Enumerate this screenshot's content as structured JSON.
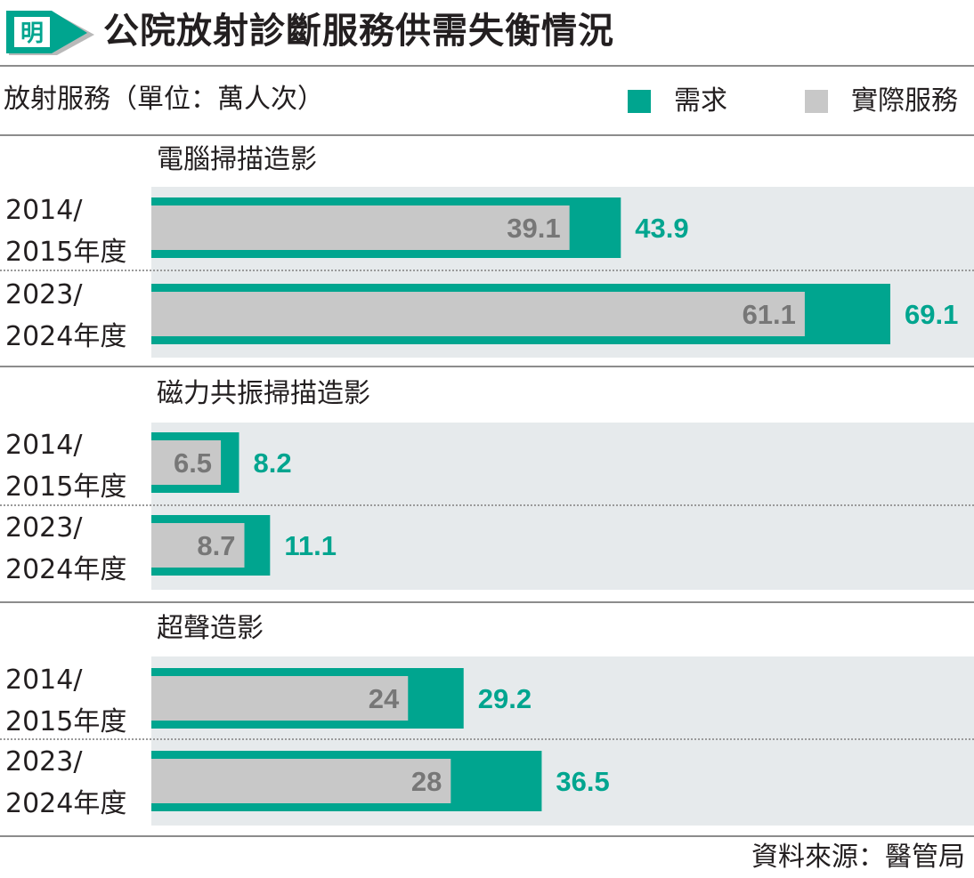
{
  "header": {
    "logo_text": "明",
    "title": "公院放射診斷服務供需失衡情況"
  },
  "subheader": {
    "unit_label": "放射服務（單位：萬人次）"
  },
  "legend": {
    "demand_label": "需求",
    "actual_label": "實際服務"
  },
  "colors": {
    "demand": "#00a58f",
    "actual": "#c8c8c8",
    "actual_value_text": "#777777",
    "background_band": "#e6eaec"
  },
  "row_labels": {
    "period_2014_line1": "2014/",
    "period_2014_line2": "2015年度",
    "period_2023_line1": "2023/",
    "period_2023_line2": "2024年度"
  },
  "source": "資料來源：醫管局",
  "chart_data": {
    "type": "bar",
    "orientation": "horizontal",
    "series_names": [
      "需求",
      "實際服務"
    ],
    "groups": [
      {
        "title": "電腦掃描造影",
        "rows": [
          {
            "period": "2014/2015年度",
            "demand": 43.9,
            "actual": 39.1
          },
          {
            "period": "2023/2024年度",
            "demand": 69.1,
            "actual": 61.1
          }
        ]
      },
      {
        "title": "磁力共振掃描造影",
        "rows": [
          {
            "period": "2014/2015年度",
            "demand": 8.2,
            "actual": 6.5
          },
          {
            "period": "2023/2024年度",
            "demand": 11.1,
            "actual": 8.7
          }
        ]
      },
      {
        "title": "超聲造影",
        "rows": [
          {
            "period": "2014/2015年度",
            "demand": 29.2,
            "actual": 24
          },
          {
            "period": "2023/2024年度",
            "demand": 36.5,
            "actual": 28
          }
        ]
      }
    ]
  }
}
